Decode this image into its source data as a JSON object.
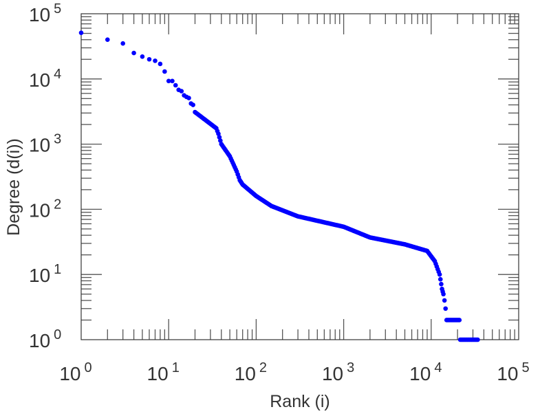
{
  "chart_data": {
    "type": "scatter",
    "title": "",
    "xlabel": "Rank (i)",
    "ylabel": "Degree (d(i))",
    "xscale": "log",
    "yscale": "log",
    "xlim": [
      1,
      100000
    ],
    "ylim": [
      1,
      100000
    ],
    "grid": false,
    "legend": "none",
    "x_ticks": [
      {
        "base": "10",
        "exp": "0"
      },
      {
        "base": "10",
        "exp": "1"
      },
      {
        "base": "10",
        "exp": "2"
      },
      {
        "base": "10",
        "exp": "3"
      },
      {
        "base": "10",
        "exp": "4"
      },
      {
        "base": "10",
        "exp": "5"
      }
    ],
    "y_ticks": [
      {
        "base": "10",
        "exp": "0"
      },
      {
        "base": "10",
        "exp": "1"
      },
      {
        "base": "10",
        "exp": "2"
      },
      {
        "base": "10",
        "exp": "3"
      },
      {
        "base": "10",
        "exp": "4"
      },
      {
        "base": "10",
        "exp": "5"
      }
    ],
    "marker_color": "#0000ff",
    "series": [
      {
        "name": "degree",
        "points": [
          [
            1,
            51000
          ],
          [
            2,
            40000
          ],
          [
            3,
            35000
          ],
          [
            4,
            25000
          ],
          [
            5,
            22000
          ],
          [
            6,
            20000
          ],
          [
            7,
            19000
          ],
          [
            8,
            17000
          ],
          [
            9,
            13000
          ],
          [
            10,
            9300
          ],
          [
            11,
            9300
          ],
          [
            12,
            8000
          ],
          [
            13,
            6800
          ],
          [
            14,
            6500
          ],
          [
            15,
            5600
          ],
          [
            16,
            5300
          ],
          [
            17,
            5100
          ],
          [
            18,
            4200
          ],
          [
            19,
            4000
          ],
          [
            20,
            3100
          ],
          [
            30,
            2050
          ],
          [
            35,
            1750
          ],
          [
            37,
            1440
          ],
          [
            40,
            1000
          ],
          [
            50,
            650
          ],
          [
            60,
            380
          ],
          [
            65,
            280
          ],
          [
            70,
            240
          ],
          [
            100,
            160
          ],
          [
            150,
            112
          ],
          [
            300,
            78
          ],
          [
            1000,
            54
          ],
          [
            2000,
            37
          ],
          [
            5000,
            29
          ],
          [
            9000,
            23
          ],
          [
            11000,
            16
          ],
          [
            12500,
            10
          ],
          [
            13300,
            6
          ],
          [
            13800,
            5
          ],
          [
            14200,
            4
          ],
          [
            14600,
            3
          ],
          [
            15000,
            2
          ],
          [
            21000,
            2
          ],
          [
            21500,
            1
          ],
          [
            34000,
            1
          ]
        ]
      }
    ]
  }
}
